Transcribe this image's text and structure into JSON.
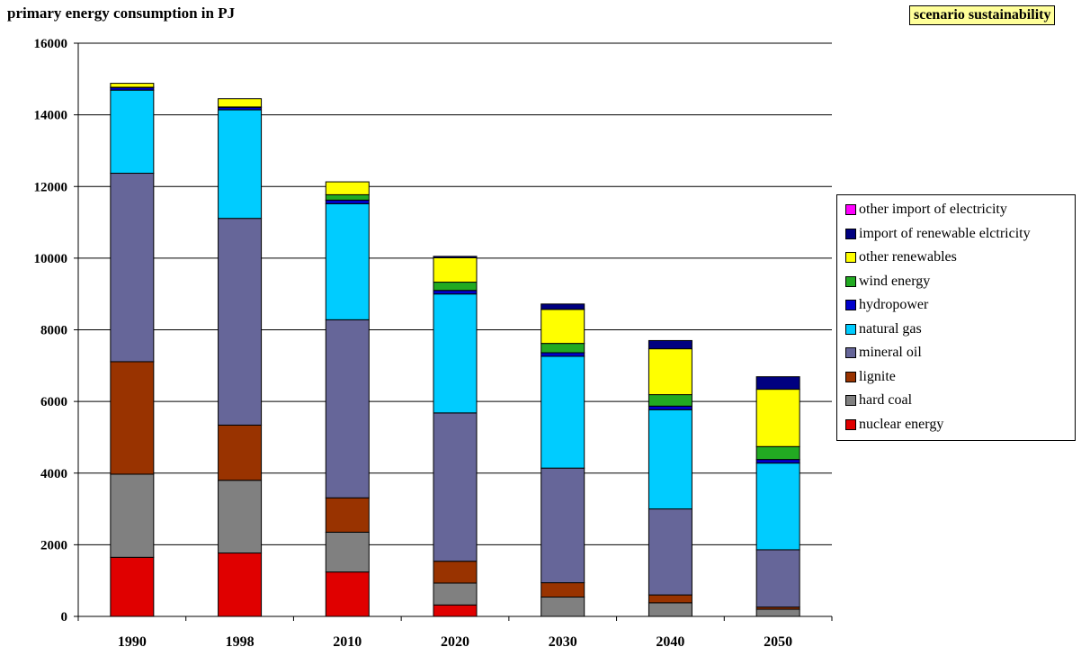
{
  "chart_data": {
    "type": "bar",
    "stacked": true,
    "title": "primary energy consumption in PJ",
    "scenario_label": "scenario sustainability",
    "categories": [
      "1990",
      "1998",
      "2010",
      "2020",
      "2030",
      "2040",
      "2050"
    ],
    "ylim": [
      0,
      16000
    ],
    "yticks": [
      0,
      2000,
      4000,
      6000,
      8000,
      10000,
      12000,
      14000,
      16000
    ],
    "grid": true,
    "legend_position": "right",
    "series": [
      {
        "name": "nuclear energy",
        "color": "#e00000",
        "values": [
          1650,
          1770,
          1240,
          320,
          0,
          0,
          0
        ]
      },
      {
        "name": "hard coal",
        "color": "#808080",
        "values": [
          2320,
          2030,
          1110,
          610,
          540,
          380,
          200
        ]
      },
      {
        "name": "lignite",
        "color": "#993300",
        "values": [
          3140,
          1540,
          960,
          610,
          400,
          220,
          60
        ]
      },
      {
        "name": "mineral oil",
        "color": "#666699",
        "values": [
          5260,
          5770,
          4970,
          4140,
          3200,
          2400,
          1600
        ]
      },
      {
        "name": "natural gas",
        "color": "#00ccff",
        "values": [
          2320,
          3030,
          3240,
          3320,
          3120,
          2770,
          2420
        ]
      },
      {
        "name": "hydropower",
        "color": "#0000cc",
        "values": [
          70,
          70,
          100,
          100,
          100,
          100,
          100
        ]
      },
      {
        "name": "wind energy",
        "color": "#22aa22",
        "values": [
          10,
          10,
          150,
          230,
          260,
          320,
          360
        ]
      },
      {
        "name": "other renewables",
        "color": "#ffff00",
        "values": [
          110,
          230,
          360,
          680,
          950,
          1280,
          1600
        ]
      },
      {
        "name": "import of renewable elctricity",
        "color": "#000080",
        "values": [
          0,
          0,
          0,
          40,
          150,
          230,
          350
        ]
      },
      {
        "name": "other import of electricity",
        "color": "#ff00ff",
        "values": [
          0,
          0,
          0,
          0,
          0,
          0,
          0
        ]
      }
    ]
  }
}
